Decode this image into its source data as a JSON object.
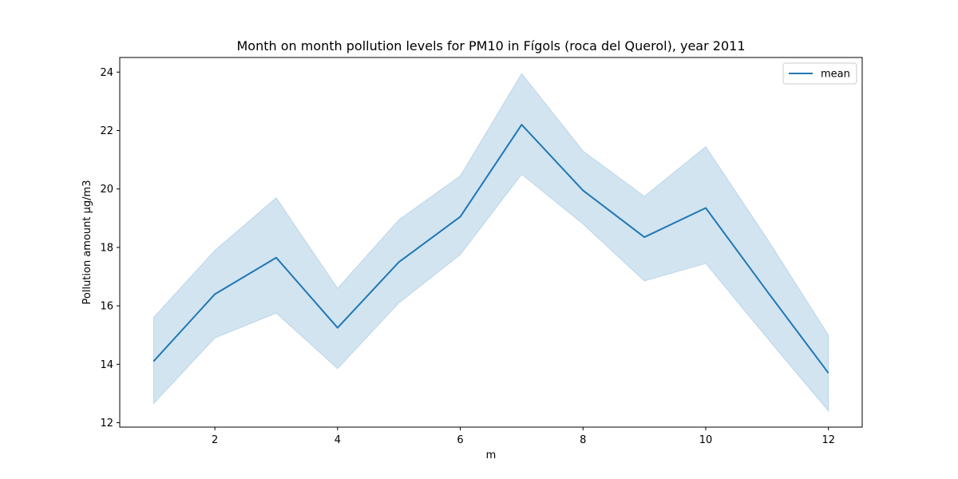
{
  "chart_data": {
    "type": "line",
    "title": "Month on month pollution levels for PM10 in Fígols (roca del Querol), year 2011",
    "xlabel": "m",
    "ylabel": "Pollution amount μg/m3",
    "xlim": [
      0.45,
      12.55
    ],
    "ylim": [
      11.85,
      24.5
    ],
    "x_ticks": [
      2,
      4,
      6,
      8,
      10,
      12
    ],
    "y_ticks": [
      12,
      14,
      16,
      18,
      20,
      22,
      24
    ],
    "grid": false,
    "legend_position": "top-right",
    "series": [
      {
        "name": "mean",
        "color": "#1f77b4",
        "x": [
          1,
          2,
          3,
          4,
          5,
          6,
          7,
          8,
          9,
          10,
          11,
          12
        ],
        "y": [
          14.1,
          16.4,
          17.65,
          15.25,
          17.5,
          19.05,
          22.2,
          19.95,
          18.35,
          19.35,
          16.5,
          13.7
        ],
        "band_lower": [
          12.65,
          14.9,
          15.75,
          13.85,
          16.1,
          17.75,
          20.5,
          18.8,
          16.85,
          17.45,
          14.9,
          12.4
        ],
        "band_upper": [
          15.6,
          17.9,
          19.7,
          16.6,
          18.95,
          20.45,
          23.95,
          21.3,
          19.75,
          21.45,
          18.3,
          15.0
        ],
        "band_color": "#1f77b4"
      }
    ]
  }
}
